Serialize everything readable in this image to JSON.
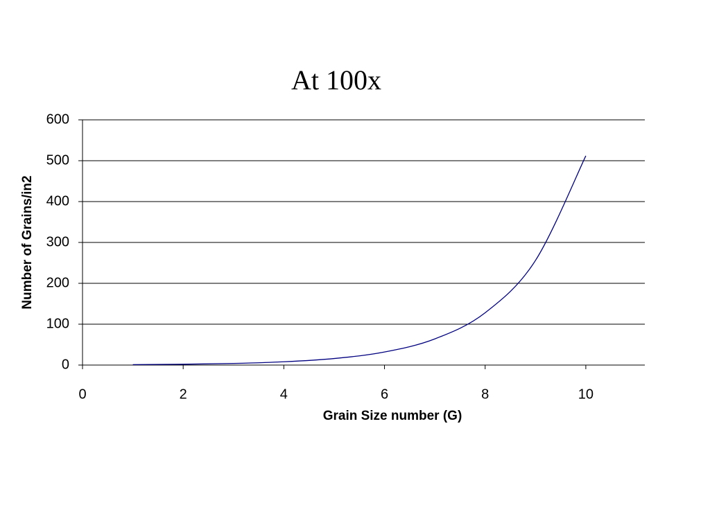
{
  "chart_data": {
    "type": "line",
    "title": "At 100x",
    "x_label": "Grain Size number (G)",
    "y_label": "Number of Grains/in2",
    "x": [
      1,
      2,
      3,
      4,
      5,
      6,
      7,
      8,
      9,
      10
    ],
    "series": [
      {
        "name": "Grains/in2",
        "color": "#000080",
        "values": [
          1,
          2,
          4,
          8,
          16,
          32,
          64,
          128,
          256,
          512
        ]
      }
    ],
    "xlim": [
      0,
      11.2
    ],
    "xticks": [
      0,
      2,
      4,
      6,
      8,
      10
    ],
    "ylim": [
      0,
      600
    ],
    "yticks": [
      0,
      100,
      200,
      300,
      400,
      500,
      600
    ],
    "grid": true,
    "smooth": true
  }
}
